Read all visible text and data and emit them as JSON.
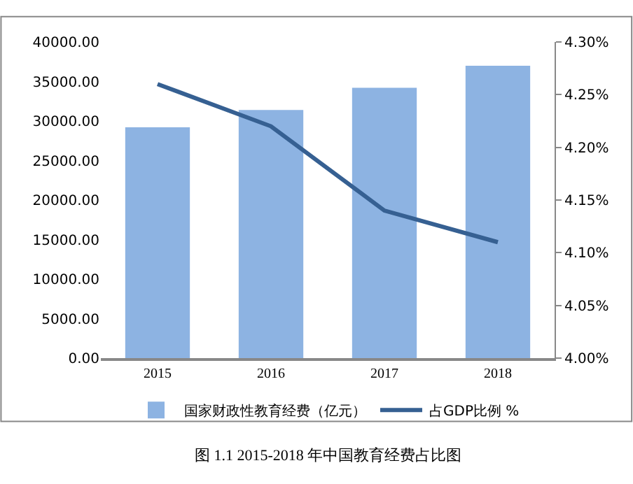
{
  "chart_data": {
    "type": "bar",
    "categories": [
      "2015",
      "2016",
      "2017",
      "2018"
    ],
    "series": [
      {
        "name": "国家财政性教育经费（亿元）",
        "color": "#8db3e2",
        "values": [
          29200,
          31400,
          34200,
          37000
        ]
      },
      {
        "name": "占GDP比例 %",
        "type": "line",
        "axis": "y2",
        "color": "#366092",
        "values": [
          4.26,
          4.22,
          4.14,
          4.11
        ]
      }
    ],
    "ylim": [
      0,
      40000
    ],
    "yticks": [
      {
        "value": 0,
        "label": "0.00"
      },
      {
        "value": 5000,
        "label": "5000.00"
      },
      {
        "value": 10000,
        "label": "10000.00"
      },
      {
        "value": 15000,
        "label": "15000.00"
      },
      {
        "value": 20000,
        "label": "20000.00"
      },
      {
        "value": 25000,
        "label": "25000.00"
      },
      {
        "value": 30000,
        "label": "30000.00"
      },
      {
        "value": 35000,
        "label": "35000.00"
      },
      {
        "value": 40000,
        "label": "40000.00"
      }
    ],
    "y2lim": [
      4.0,
      4.3
    ],
    "y2ticks": [
      {
        "value": 4.0,
        "label": "4.00%"
      },
      {
        "value": 4.05,
        "label": "4.05%"
      },
      {
        "value": 4.1,
        "label": "4.10%"
      },
      {
        "value": 4.15,
        "label": "4.15%"
      },
      {
        "value": 4.2,
        "label": "4.20%"
      },
      {
        "value": 4.25,
        "label": "4.25%"
      },
      {
        "value": 4.3,
        "label": "4.30%"
      }
    ],
    "grid": false,
    "legend": "bottom",
    "marker": "none",
    "line_style": "solid",
    "annotations": [
      "图 1.1 2015-2018 年中国教育经费占比图"
    ]
  }
}
